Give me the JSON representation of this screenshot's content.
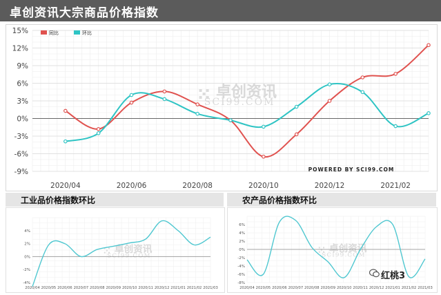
{
  "page_title": "卓创资讯大宗商品价格指数",
  "footer_mark": "红桃3",
  "main": {
    "watermark_cn": "卓创资讯",
    "watermark_en": "SCI99.COM",
    "powered_by": "POWERED BY SCI99.COM"
  },
  "industrial": {
    "header": "工业品价格指数环比",
    "watermark_cn": "卓创资讯",
    "watermark_en": "SCI99.COM"
  },
  "agricultural": {
    "header": "农产品价格指数环比",
    "watermark_cn": "卓创资讯",
    "watermark_en": "SCI99.COM"
  },
  "colors": {
    "yoy": "#e0524f",
    "mom": "#2ec4c4",
    "small_line": "#4fc7d0",
    "grid": "#e6e6e6",
    "axis": "#555555",
    "text": "#444444"
  },
  "chart_data": [
    {
      "id": "composite",
      "type": "line",
      "ylim": [
        -9,
        15
      ],
      "yticks": [
        -9,
        -6,
        -3,
        0,
        3,
        6,
        9,
        12,
        15
      ],
      "ytick_labels": [
        "-9%",
        "-6%",
        "-3%",
        "0%",
        "3%",
        "6%",
        "9%",
        "12%",
        "15%"
      ],
      "xlim": [
        0,
        12
      ],
      "xticks": [
        1,
        3,
        5,
        7,
        9,
        11
      ],
      "xtick_labels": [
        "2020/04",
        "2020/06",
        "2020/08",
        "2020/10",
        "2020/12",
        "2021/02"
      ],
      "legend": "top-left",
      "series": [
        {
          "name": "同比",
          "color": "#e0524f",
          "x": [
            1,
            2,
            3,
            4,
            5,
            6,
            7,
            8,
            9,
            10,
            11,
            12
          ],
          "values": [
            1.3,
            -1.8,
            2.7,
            4.6,
            2.4,
            -0.3,
            -6.5,
            -2.7,
            3.0,
            7.0,
            7.6,
            12.5
          ]
        },
        {
          "name": "环比",
          "color": "#2ec4c4",
          "x": [
            1,
            2,
            3,
            4,
            5,
            6,
            7,
            8,
            9,
            10,
            11,
            12
          ],
          "values": [
            -3.9,
            -2.5,
            4.0,
            3.3,
            0.8,
            -0.3,
            -1.4,
            2.0,
            5.8,
            4.5,
            -1.3,
            0.9
          ]
        }
      ]
    },
    {
      "id": "industrial",
      "type": "line",
      "ylim": [
        -4,
        6
      ],
      "yticks": [
        -4,
        -2,
        0,
        2,
        4
      ],
      "ytick_labels": [
        "-4%",
        "-2%",
        "0%",
        "2%",
        "4%"
      ],
      "xtick_labels": [
        "2020/04",
        "2020/05",
        "2020/06",
        "2020/07",
        "2020/08",
        "2020/09",
        "2020/10",
        "2020/11",
        "2020/12",
        "2021/01",
        "2021/02",
        "2021/03"
      ],
      "series": [
        {
          "color": "#4fc7d0",
          "values": [
            -4.6,
            1.8,
            2.0,
            0.0,
            1.1,
            1.6,
            2.1,
            2.7,
            5.5,
            4.0,
            1.8,
            3.0
          ]
        }
      ]
    },
    {
      "id": "agricultural",
      "type": "line",
      "ylim": [
        -8,
        8
      ],
      "yticks": [
        -8,
        -6,
        -4,
        -2,
        0,
        2,
        4,
        6
      ],
      "ytick_labels": [
        "-8%",
        "-6%",
        "-4%",
        "-2%",
        "0%",
        "2%",
        "4%",
        "6%"
      ],
      "xtick_labels": [
        "2020/04",
        "2020/05",
        "2020/06",
        "2020/07",
        "2020/08",
        "2020/09",
        "2020/10",
        "2020/11",
        "2020/12",
        "2021/01",
        "2021/02",
        "2021/03"
      ],
      "series": [
        {
          "color": "#4fc7d0",
          "values": [
            -2.5,
            -6.0,
            6.6,
            7.0,
            0.5,
            -3.0,
            -6.8,
            0.0,
            5.5,
            6.0,
            -6.6,
            -2.3
          ]
        }
      ]
    }
  ]
}
